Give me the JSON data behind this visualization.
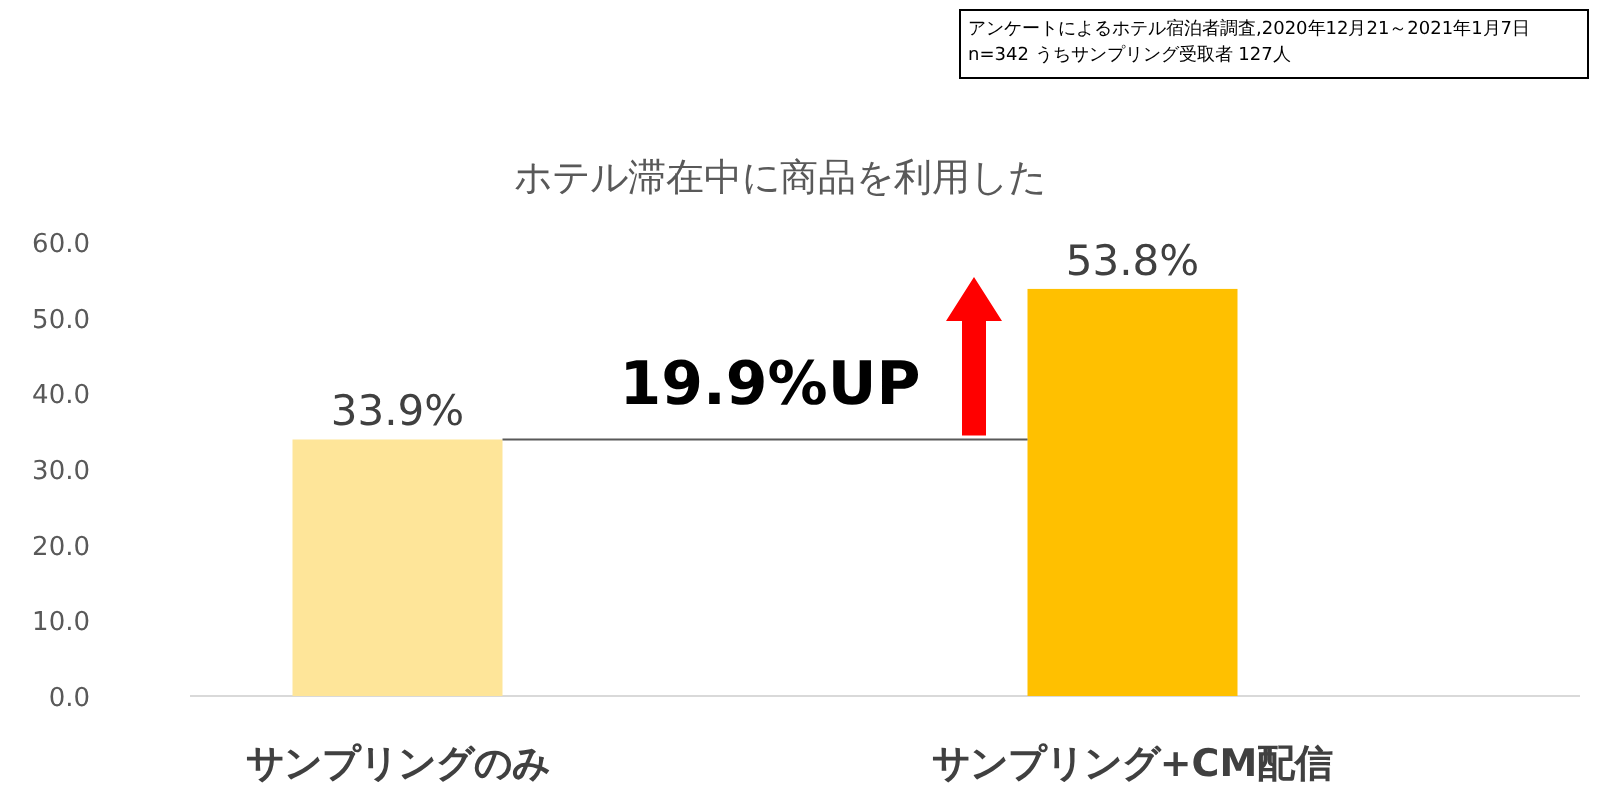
{
  "chart_data": {
    "type": "bar",
    "title": "ホテル滞在中に商品を利用した",
    "categories": [
      "サンプリングのみ",
      "サンプリング+CM配信"
    ],
    "values": [
      33.9,
      53.8
    ],
    "value_labels": [
      "33.9%",
      "53.8%"
    ],
    "colors": [
      "#fee599",
      "#ffc000"
    ],
    "ylim": [
      0,
      60
    ],
    "yticks": [
      {
        "value": 0,
        "label": "0.0"
      },
      {
        "value": 10,
        "label": "10.0"
      },
      {
        "value": 20,
        "label": "20.0"
      },
      {
        "value": 30,
        "label": "30.0"
      },
      {
        "value": 40,
        "label": "40.0"
      },
      {
        "value": 50,
        "label": "50.0"
      },
      {
        "value": 60,
        "label": "60.0"
      }
    ],
    "grid": false,
    "ref_lines": [
      {
        "axis": "y",
        "value": 33.9,
        "label": "19.9%UP",
        "color": "#595959"
      }
    ],
    "annotations": [
      "アンケートによるホテル宿泊者調査,2020年12月21～2021年1月7日",
      "n=342 うちサンプリング受取者 127人"
    ]
  }
}
